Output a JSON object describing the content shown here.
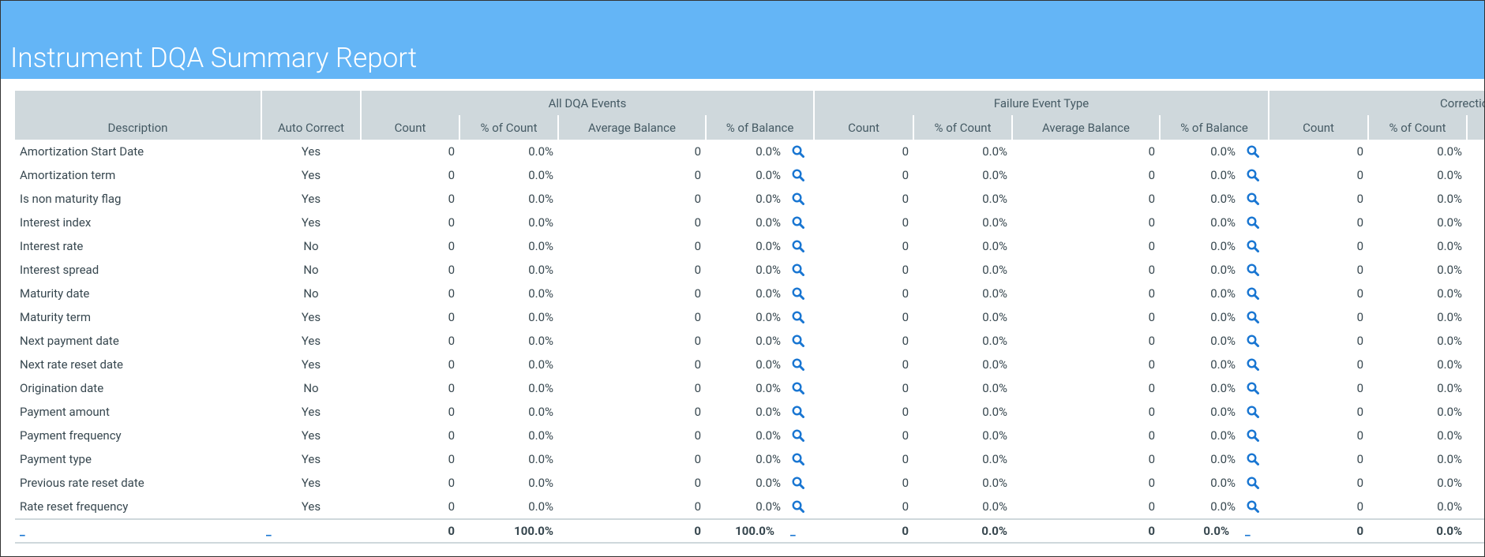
{
  "header": {
    "title": "Instrument DQA Summary Report"
  },
  "table": {
    "fixed_columns": [
      "Description",
      "Auto Correct"
    ],
    "groups": [
      "All DQA Events",
      "Failure Event Type",
      "Correctio"
    ],
    "group_columns": [
      [
        "Count",
        "% of Count",
        "Average Balance",
        "% of Balance"
      ],
      [
        "Count",
        "% of Count",
        "Average Balance",
        "% of Balance"
      ],
      [
        "Count",
        "% of Count"
      ]
    ],
    "rows": [
      [
        "Amortization Start Date",
        "Yes",
        "0",
        "0.0%",
        "0",
        "0.0%",
        "0",
        "0.0%",
        "0",
        "0.0%",
        "0",
        "0.0%"
      ],
      [
        "Amortization term",
        "Yes",
        "0",
        "0.0%",
        "0",
        "0.0%",
        "0",
        "0.0%",
        "0",
        "0.0%",
        "0",
        "0.0%"
      ],
      [
        "Is non maturity flag",
        "Yes",
        "0",
        "0.0%",
        "0",
        "0.0%",
        "0",
        "0.0%",
        "0",
        "0.0%",
        "0",
        "0.0%"
      ],
      [
        "Interest index",
        "Yes",
        "0",
        "0.0%",
        "0",
        "0.0%",
        "0",
        "0.0%",
        "0",
        "0.0%",
        "0",
        "0.0%"
      ],
      [
        "Interest rate",
        "No",
        "0",
        "0.0%",
        "0",
        "0.0%",
        "0",
        "0.0%",
        "0",
        "0.0%",
        "0",
        "0.0%"
      ],
      [
        "Interest spread",
        "No",
        "0",
        "0.0%",
        "0",
        "0.0%",
        "0",
        "0.0%",
        "0",
        "0.0%",
        "0",
        "0.0%"
      ],
      [
        "Maturity date",
        "No",
        "0",
        "0.0%",
        "0",
        "0.0%",
        "0",
        "0.0%",
        "0",
        "0.0%",
        "0",
        "0.0%"
      ],
      [
        "Maturity term",
        "Yes",
        "0",
        "0.0%",
        "0",
        "0.0%",
        "0",
        "0.0%",
        "0",
        "0.0%",
        "0",
        "0.0%"
      ],
      [
        "Next payment date",
        "Yes",
        "0",
        "0.0%",
        "0",
        "0.0%",
        "0",
        "0.0%",
        "0",
        "0.0%",
        "0",
        "0.0%"
      ],
      [
        "Next rate reset date",
        "Yes",
        "0",
        "0.0%",
        "0",
        "0.0%",
        "0",
        "0.0%",
        "0",
        "0.0%",
        "0",
        "0.0%"
      ],
      [
        "Origination date",
        "No",
        "0",
        "0.0%",
        "0",
        "0.0%",
        "0",
        "0.0%",
        "0",
        "0.0%",
        "0",
        "0.0%"
      ],
      [
        "Payment amount",
        "Yes",
        "0",
        "0.0%",
        "0",
        "0.0%",
        "0",
        "0.0%",
        "0",
        "0.0%",
        "0",
        "0.0%"
      ],
      [
        "Payment frequency",
        "Yes",
        "0",
        "0.0%",
        "0",
        "0.0%",
        "0",
        "0.0%",
        "0",
        "0.0%",
        "0",
        "0.0%"
      ],
      [
        "Payment type",
        "Yes",
        "0",
        "0.0%",
        "0",
        "0.0%",
        "0",
        "0.0%",
        "0",
        "0.0%",
        "0",
        "0.0%"
      ],
      [
        "Previous rate reset date",
        "Yes",
        "0",
        "0.0%",
        "0",
        "0.0%",
        "0",
        "0.0%",
        "0",
        "0.0%",
        "0",
        "0.0%"
      ],
      [
        "Rate reset frequency",
        "Yes",
        "0",
        "0.0%",
        "0",
        "0.0%",
        "0",
        "0.0%",
        "0",
        "0.0%",
        "0",
        "0.0%"
      ]
    ],
    "totals": {
      "cells": [
        "_",
        "_",
        "0",
        "100.0%",
        "0",
        "100.0%",
        "0",
        "0.0%",
        "0",
        "0.0%",
        "0",
        "0.0%"
      ],
      "links": [
        "_",
        "_"
      ]
    }
  }
}
